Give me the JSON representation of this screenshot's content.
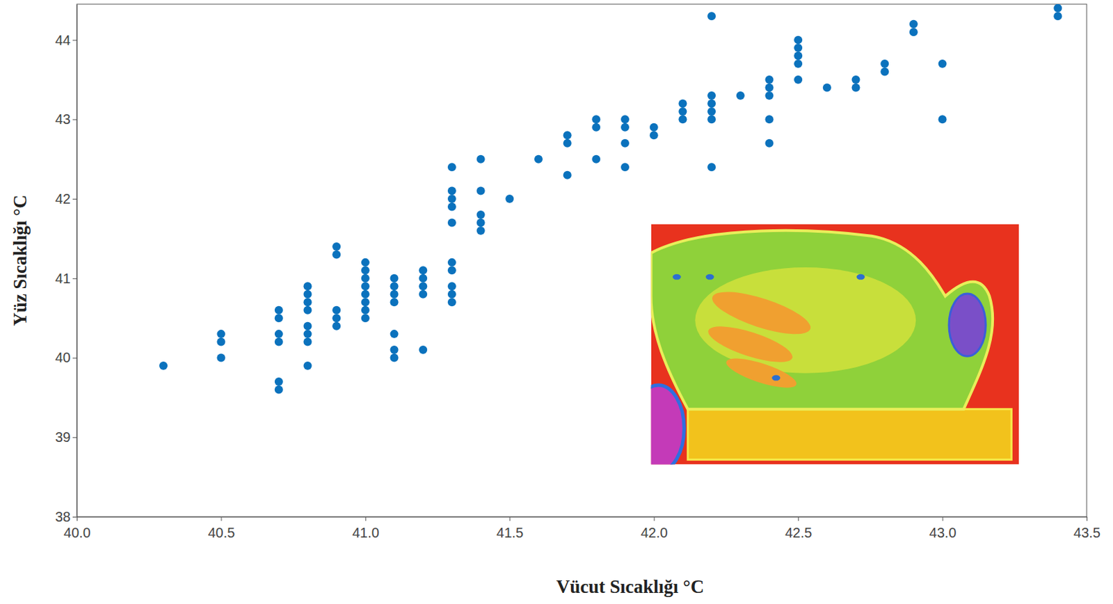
{
  "chart_data": {
    "type": "scatter",
    "x_label": "Vücut Sıcaklığı °C",
    "y_label": "Yüz Sıcaklığı °C",
    "color": "#0b72bd",
    "marker": "circle",
    "x": [
      40.3,
      40.5,
      40.5,
      40.5,
      40.7,
      40.7,
      40.7,
      40.7,
      40.7,
      40.7,
      40.8,
      40.8,
      40.8,
      40.8,
      40.8,
      40.8,
      40.8,
      40.8,
      40.9,
      40.9,
      40.9,
      40.9,
      40.9,
      41.0,
      41.0,
      41.0,
      41.0,
      41.0,
      41.0,
      41.0,
      41.0,
      41.1,
      41.1,
      41.1,
      41.1,
      41.1,
      41.1,
      41.1,
      41.2,
      41.2,
      41.2,
      41.2,
      41.2,
      41.3,
      41.3,
      41.3,
      41.3,
      41.3,
      41.3,
      41.3,
      41.3,
      41.3,
      41.3,
      41.4,
      41.4,
      41.4,
      41.4,
      41.4,
      41.5,
      41.6,
      41.7,
      41.7,
      41.7,
      41.8,
      41.8,
      41.8,
      41.9,
      41.9,
      41.9,
      41.9,
      42.0,
      42.0,
      42.1,
      42.1,
      42.1,
      42.2,
      42.2,
      42.2,
      42.2,
      42.2,
      42.2,
      42.3,
      42.4,
      42.4,
      42.4,
      42.4,
      42.4,
      42.5,
      42.5,
      42.5,
      42.5,
      42.5,
      42.6,
      42.7,
      42.7,
      42.8,
      42.8,
      42.9,
      42.9,
      43.0,
      43.0,
      43.4,
      43.4
    ],
    "values": [
      39.9,
      40.3,
      40.2,
      40.0,
      40.6,
      40.5,
      40.3,
      40.2,
      39.7,
      39.6,
      40.9,
      40.8,
      40.7,
      40.6,
      40.4,
      40.3,
      40.2,
      39.9,
      41.4,
      41.3,
      40.6,
      40.5,
      40.4,
      41.2,
      41.1,
      41.0,
      40.9,
      40.8,
      40.7,
      40.6,
      40.5,
      41.0,
      40.9,
      40.8,
      40.7,
      40.3,
      40.1,
      40.0,
      41.1,
      41.0,
      40.9,
      40.8,
      40.1,
      42.4,
      42.1,
      42.0,
      41.9,
      41.7,
      41.2,
      41.1,
      40.9,
      40.8,
      40.7,
      42.5,
      42.1,
      41.8,
      41.7,
      41.6,
      42.0,
      42.5,
      42.8,
      42.7,
      42.3,
      43.0,
      42.9,
      42.5,
      43.0,
      42.9,
      42.7,
      42.4,
      42.9,
      42.8,
      43.2,
      43.1,
      43.0,
      44.3,
      43.3,
      43.2,
      43.1,
      43.0,
      42.4,
      43.3,
      43.5,
      43.4,
      43.3,
      43.0,
      42.7,
      44.0,
      43.9,
      43.8,
      43.7,
      43.5,
      43.4,
      43.5,
      43.4,
      43.7,
      43.6,
      44.2,
      44.1,
      43.7,
      43.0,
      44.4,
      44.3
    ],
    "xlim": [
      40.0,
      43.5
    ],
    "xticks": [
      {
        "value": 40,
        "label": "40.0"
      },
      40.5,
      {
        "value": 41,
        "label": "41.0"
      },
      41.5,
      {
        "value": 42,
        "label": "42.0"
      },
      42.5,
      {
        "value": 43,
        "label": "43.0"
      },
      43.5
    ],
    "ylim": [
      38,
      44.45
    ],
    "yticks": [
      38,
      39,
      40,
      41,
      42,
      43,
      44
    ],
    "grid": false
  }
}
